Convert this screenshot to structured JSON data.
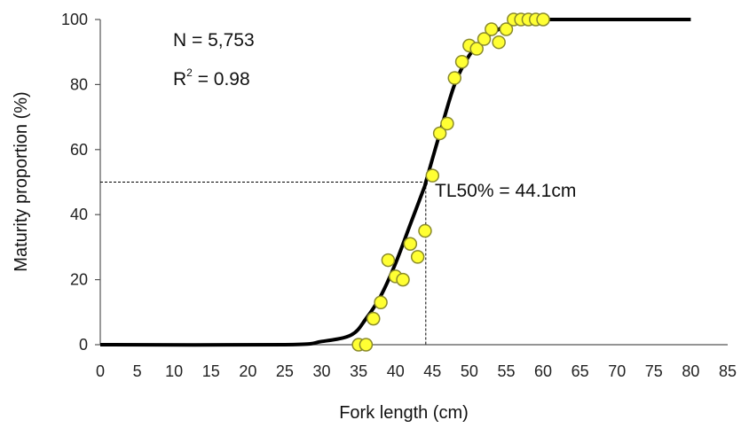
{
  "chart_data": {
    "type": "scatter",
    "xlabel": "Fork length (cm)",
    "ylabel": "Maturity proportion (%)",
    "xlim": [
      0,
      85
    ],
    "ylim": [
      0,
      100
    ],
    "x_ticks": [
      0,
      5,
      10,
      15,
      20,
      25,
      30,
      35,
      40,
      45,
      50,
      55,
      60,
      65,
      70,
      75,
      80,
      85
    ],
    "y_ticks": [
      0,
      20,
      40,
      60,
      80,
      100
    ],
    "grid": false,
    "annotations": {
      "n_text": "N = 5,753",
      "r2_prefix": "R",
      "r2_sup": "2",
      "r2_suffix": " = 0.98",
      "tl50_text": "TL50% = 44.1cm"
    },
    "l50": {
      "x": 44.1,
      "y": 50
    },
    "fitted_curve": {
      "x": [
        0,
        25,
        30,
        34,
        36,
        38,
        40,
        42,
        44,
        44.1,
        46,
        48,
        50,
        52,
        54,
        56,
        58,
        60,
        80
      ],
      "y": [
        0,
        0,
        1,
        3,
        8,
        15,
        25,
        37,
        49,
        50,
        65,
        80,
        89,
        94,
        97,
        99,
        100,
        100,
        100
      ]
    },
    "observed": {
      "x": [
        35,
        36,
        37,
        38,
        39,
        40,
        41,
        42,
        43,
        44,
        45,
        46,
        47,
        48,
        49,
        50,
        51,
        52,
        53,
        54,
        55,
        56,
        57,
        58,
        59,
        60
      ],
      "y": [
        0,
        0,
        8,
        13,
        26,
        21,
        20,
        31,
        27,
        35,
        52,
        65,
        68,
        82,
        87,
        92,
        91,
        94,
        97,
        93,
        97,
        100,
        100,
        100,
        100,
        100
      ]
    },
    "colors": {
      "curve": "#000000",
      "marker_fill": "#ffff33",
      "marker_stroke": "#8a8a2a",
      "axis": "#555555",
      "dash": "#000000"
    }
  }
}
